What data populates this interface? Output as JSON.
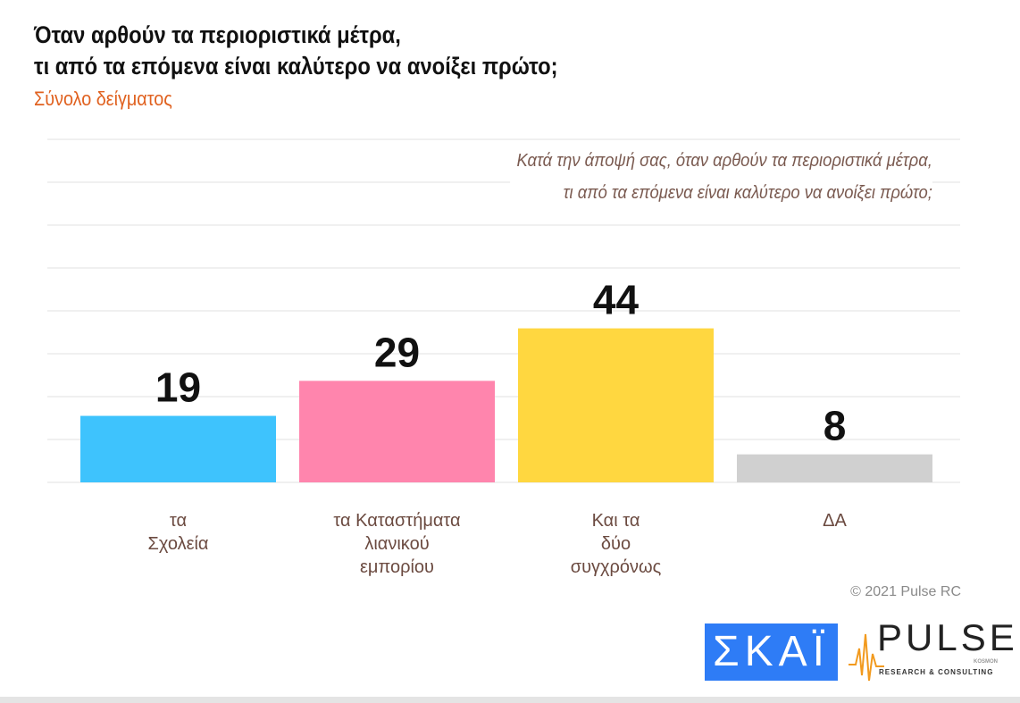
{
  "header": {
    "title_line1": "Όταν αρθούν τα περιοριστικά μέτρα,",
    "title_line2": "τι από τα επόμενα είναι καλύτερο να ανοίξει πρώτο;",
    "subtitle": "Σύνολο δείγματος"
  },
  "question": {
    "line1": "Κατά την άποψή σας, όταν αρθούν τα περιοριστικά μέτρα,",
    "line2": "τι από τα επόμενα είναι καλύτερο να ανοίξει πρώτο;"
  },
  "chart_data": {
    "type": "bar",
    "title": "Όταν αρθούν τα περιοριστικά μέτρα, τι από τα επόμενα είναι καλύτερο να ανοίξει πρώτο;",
    "subtitle": "Σύνολο δείγματος",
    "categories": [
      [
        "τα",
        "Σχολεία"
      ],
      [
        "τα Καταστήματα",
        "λιανικού",
        "εμπορίου"
      ],
      [
        "Και τα",
        "δύο",
        "συγχρόνως"
      ],
      [
        "ΔΑ"
      ]
    ],
    "values": [
      19,
      29,
      44,
      8
    ],
    "colors": [
      "#3ec3fd",
      "#ff85ad",
      "#ffd740",
      "#d0d0d0"
    ],
    "ylim": [
      0,
      98
    ],
    "grid": true,
    "data_labels": true
  },
  "footer": {
    "copyright": "© 2021 Pulse RC",
    "logo1": "ΣΚΑΪ",
    "logo2": "PULSE",
    "logo2_sub": "RESEARCH & CONSULTING",
    "logo2_tag": "KOSMON"
  }
}
